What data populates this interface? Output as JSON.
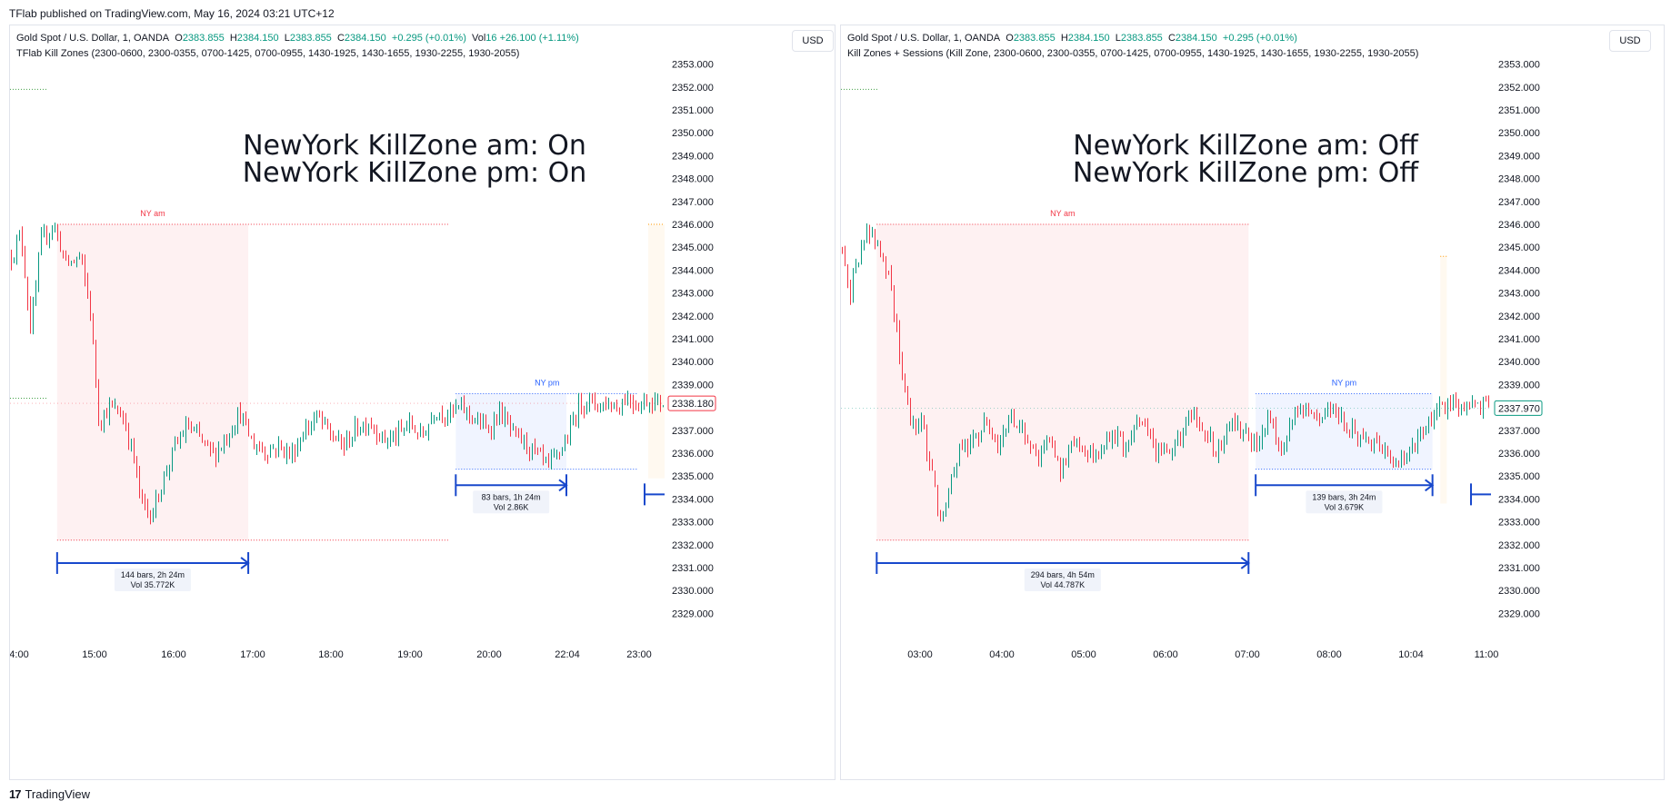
{
  "header": {
    "publisher_text": "TFlab published on TradingView.com, May 16, 2024 03:21 UTC+12"
  },
  "footer": {
    "brand": "TradingView",
    "logo_glyph": "17"
  },
  "colors": {
    "up": "#089981",
    "down": "#f23645",
    "ny_am": "#f23645",
    "ny_pm": "#2962ff",
    "measure": "#1848cc",
    "asia": "#43a047",
    "orange": "#ff9800"
  },
  "chart_data": [
    {
      "type": "candlestick",
      "legend": {
        "symbol": "Gold Spot / U.S. Dollar, 1, OANDA",
        "o_label": "O",
        "o": "2383.855",
        "h_label": "H",
        "h": "2384.150",
        "l_label": "L",
        "l": "2383.855",
        "c_label": "C",
        "c": "2384.150",
        "change": "+0.295 (+0.01%)",
        "vol_label": "Vol",
        "vol": "16",
        "vol_change": "+26.100 (+1.11%)",
        "indicator": "TFlab Kill Zones (2300-0600, 2300-0355, 0700-1425, 0700-0955, 1430-1925, 1430-1655, 1930-2255, 1930-2055)"
      },
      "currency": "USD",
      "overlay_text": [
        "NewYork KillZone am: On",
        "NewYork KillZone pm: On"
      ],
      "y_ticks": [
        "2353.000",
        "2352.000",
        "2351.000",
        "2350.000",
        "2349.000",
        "2348.000",
        "2347.000",
        "2346.000",
        "2345.000",
        "2344.000",
        "2343.000",
        "2342.000",
        "2341.000",
        "2340.000",
        "2339.000",
        "2338.000",
        "2337.000",
        "2336.000",
        "2335.000",
        "2334.000",
        "2333.000",
        "2332.000",
        "2331.000",
        "2330.000",
        "2329.000"
      ],
      "ylim": [
        2328.5,
        2353.5
      ],
      "x_ticks": [
        "4:00",
        "15:00",
        "16:00",
        "17:00",
        "18:00",
        "19:00",
        "20:00",
        "22:04",
        "23:00"
      ],
      "last_price": "2338.180",
      "last_price_value": 2338.18,
      "last_price_color": "#f23645",
      "price_path": [
        [
          0.0,
          2344.6
        ],
        [
          0.015,
          2345.6
        ],
        [
          0.03,
          2341.3
        ],
        [
          0.045,
          2345.2
        ],
        [
          0.065,
          2346.0
        ],
        [
          0.085,
          2344.2
        ],
        [
          0.105,
          2344.6
        ],
        [
          0.12,
          2342.6
        ],
        [
          0.135,
          2337.3
        ],
        [
          0.15,
          2338.0
        ],
        [
          0.17,
          2337.7
        ],
        [
          0.185,
          2336.2
        ],
        [
          0.2,
          2333.8
        ],
        [
          0.215,
          2333.3
        ],
        [
          0.23,
          2334.6
        ],
        [
          0.25,
          2336.2
        ],
        [
          0.27,
          2337.2
        ],
        [
          0.29,
          2336.6
        ],
        [
          0.31,
          2335.9
        ],
        [
          0.33,
          2336.7
        ],
        [
          0.35,
          2337.8
        ],
        [
          0.37,
          2336.4
        ],
        [
          0.39,
          2336.1
        ],
        [
          0.41,
          2336.3
        ],
        [
          0.43,
          2335.9
        ],
        [
          0.45,
          2337.0
        ],
        [
          0.47,
          2337.6
        ],
        [
          0.49,
          2336.8
        ],
        [
          0.51,
          2336.3
        ],
        [
          0.53,
          2337.1
        ],
        [
          0.55,
          2337.4
        ],
        [
          0.57,
          2336.6
        ],
        [
          0.59,
          2336.7
        ],
        [
          0.61,
          2337.3
        ],
        [
          0.63,
          2336.7
        ],
        [
          0.65,
          2337.9
        ],
        [
          0.67,
          2337.7
        ],
        [
          0.69,
          2338.0
        ],
        [
          0.71,
          2337.5
        ],
        [
          0.73,
          2337.0
        ],
        [
          0.75,
          2337.8
        ],
        [
          0.77,
          2336.8
        ],
        [
          0.79,
          2336.4
        ],
        [
          0.81,
          2335.8
        ],
        [
          0.825,
          2335.4
        ],
        [
          0.84,
          2336.0
        ],
        [
          0.855,
          2336.8
        ],
        [
          0.87,
          2338.1
        ],
        [
          0.885,
          2338.3
        ],
        [
          0.9,
          2338.1
        ],
        [
          0.915,
          2338.2
        ],
        [
          0.93,
          2338.0
        ],
        [
          0.945,
          2338.5
        ],
        [
          0.96,
          2338.1
        ],
        [
          0.975,
          2338.3
        ],
        [
          1.0,
          2338.2
        ]
      ],
      "zones": [
        {
          "label": "NY am",
          "start": 0.072,
          "end": 0.364,
          "top": 2346.0,
          "bottom": 2332.2,
          "fill_end": 0.364,
          "line_end": 0.672,
          "color": "#f23645"
        },
        {
          "label": "NY pm",
          "start": 0.681,
          "end": 0.96,
          "top": 2338.6,
          "bottom": 2335.3,
          "fill_end": 0.85,
          "line_end": 0.96,
          "color": "#2962ff"
        }
      ],
      "measures": [
        {
          "start": 0.072,
          "end": 0.364,
          "price": 2331.2,
          "line1": "144 bars, 2h 24m",
          "line2": "Vol 35.772K"
        },
        {
          "start": 0.681,
          "end": 0.85,
          "price": 2334.6,
          "line1": "83 bars, 1h 24m",
          "line2": "Vol 2.86K"
        }
      ],
      "asia_levels": [
        2351.9,
        2338.4
      ],
      "orange_box": {
        "start": 0.975,
        "end": 1.0,
        "top": 2346.0,
        "bottom": 2334.9
      }
    },
    {
      "type": "candlestick",
      "legend": {
        "symbol": "Gold Spot / U.S. Dollar, 1, OANDA",
        "o_label": "O",
        "o": "2383.855",
        "h_label": "H",
        "h": "2384.150",
        "l_label": "L",
        "l": "2383.855",
        "c_label": "C",
        "c": "2384.150",
        "change": "+0.295 (+0.01%)",
        "vol_label": "",
        "vol": "",
        "vol_change": "",
        "indicator": "Kill Zones + Sessions (Kill Zone, 2300-0600, 2300-0355, 0700-1425, 0700-0955, 1430-1925, 1430-1655, 1930-2255, 1930-2055)"
      },
      "currency": "USD",
      "overlay_text": [
        "NewYork KillZone am: Off",
        "NewYork KillZone pm: Off"
      ],
      "y_ticks": [
        "2353.000",
        "2352.000",
        "2351.000",
        "2350.000",
        "2349.000",
        "2348.000",
        "2347.000",
        "2346.000",
        "2345.000",
        "2344.000",
        "2343.000",
        "2342.000",
        "2341.000",
        "2340.000",
        "2339.000",
        "2338.000",
        "2337.000",
        "2336.000",
        "2335.000",
        "2334.000",
        "2333.000",
        "2332.000",
        "2331.000",
        "2330.000",
        "2329.000"
      ],
      "ylim": [
        2328.5,
        2353.5
      ],
      "x_ticks": [
        "03:00",
        "04:00",
        "05:00",
        "06:00",
        "07:00",
        "08:00",
        "10:04",
        "11:00"
      ],
      "last_price": "2337.970",
      "last_price_value": 2337.97,
      "last_price_color": "#089981",
      "price_path": [
        [
          0.0,
          2345.0
        ],
        [
          0.012,
          2343.0
        ],
        [
          0.025,
          2344.5
        ],
        [
          0.04,
          2345.8
        ],
        [
          0.06,
          2344.4
        ],
        [
          0.075,
          2343.5
        ],
        [
          0.09,
          2340.0
        ],
        [
          0.105,
          2337.3
        ],
        [
          0.12,
          2337.5
        ],
        [
          0.135,
          2335.7
        ],
        [
          0.15,
          2333.3
        ],
        [
          0.165,
          2334.2
        ],
        [
          0.18,
          2336.2
        ],
        [
          0.2,
          2336.3
        ],
        [
          0.22,
          2337.4
        ],
        [
          0.24,
          2336.1
        ],
        [
          0.26,
          2337.6
        ],
        [
          0.28,
          2336.9
        ],
        [
          0.3,
          2335.9
        ],
        [
          0.32,
          2336.5
        ],
        [
          0.34,
          2335.2
        ],
        [
          0.36,
          2336.6
        ],
        [
          0.38,
          2336.0
        ],
        [
          0.4,
          2336.2
        ],
        [
          0.42,
          2336.9
        ],
        [
          0.44,
          2336.3
        ],
        [
          0.46,
          2337.5
        ],
        [
          0.48,
          2336.3
        ],
        [
          0.5,
          2336.0
        ],
        [
          0.52,
          2336.6
        ],
        [
          0.54,
          2337.7
        ],
        [
          0.56,
          2337.1
        ],
        [
          0.58,
          2336.1
        ],
        [
          0.6,
          2337.5
        ],
        [
          0.62,
          2336.9
        ],
        [
          0.64,
          2336.4
        ],
        [
          0.66,
          2337.6
        ],
        [
          0.68,
          2336.1
        ],
        [
          0.7,
          2337.8
        ],
        [
          0.72,
          2337.9
        ],
        [
          0.74,
          2337.4
        ],
        [
          0.76,
          2338.2
        ],
        [
          0.78,
          2337.2
        ],
        [
          0.8,
          2336.8
        ],
        [
          0.82,
          2336.4
        ],
        [
          0.84,
          2335.9
        ],
        [
          0.86,
          2335.4
        ],
        [
          0.88,
          2336.0
        ],
        [
          0.9,
          2337.2
        ],
        [
          0.92,
          2337.8
        ],
        [
          0.94,
          2338.1
        ],
        [
          0.96,
          2338.0
        ],
        [
          0.98,
          2338.2
        ],
        [
          1.0,
          2338.0
        ]
      ],
      "zones": [
        {
          "label": "NY am",
          "start": 0.055,
          "end": 0.627,
          "top": 2346.0,
          "bottom": 2332.2,
          "fill_end": 0.627,
          "line_end": 0.627,
          "color": "#f23645"
        },
        {
          "label": "NY pm",
          "start": 0.638,
          "end": 0.91,
          "top": 2338.6,
          "bottom": 2335.3,
          "fill_end": 0.91,
          "line_end": 0.91,
          "color": "#2962ff"
        }
      ],
      "measures": [
        {
          "start": 0.055,
          "end": 0.627,
          "price": 2331.2,
          "line1": "294 bars, 4h 54m",
          "line2": "Vol 44.787K"
        },
        {
          "start": 0.638,
          "end": 0.91,
          "price": 2334.6,
          "line1": "139 bars, 3h 24m",
          "line2": "Vol 3.679K"
        }
      ],
      "asia_levels": [
        2351.9
      ],
      "orange_box": {
        "start": 0.922,
        "end": 0.932,
        "top": 2344.6,
        "bottom": 2333.8
      }
    }
  ]
}
